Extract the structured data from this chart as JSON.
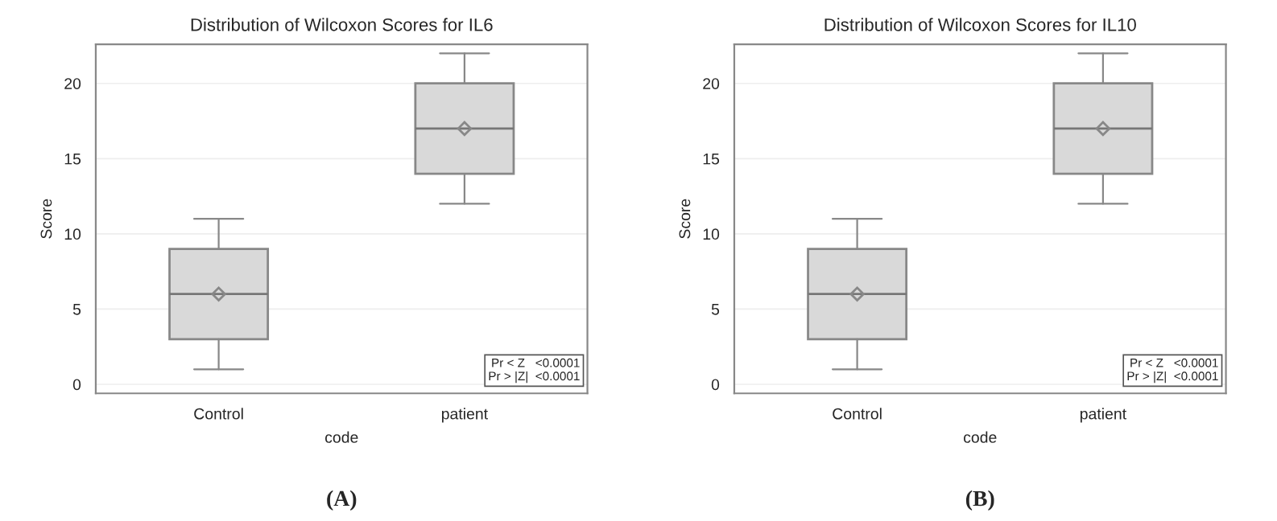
{
  "chart_data": [
    {
      "type": "box",
      "title": "Distribution of Wilcoxon Scores for IL6",
      "xlabel": "code",
      "ylabel": "Score",
      "categories": [
        "Control",
        "patient"
      ],
      "color": "#d9d9d9",
      "boxes": [
        {
          "low": 1,
          "q1": 3,
          "median": 6,
          "q3": 9,
          "high": 11,
          "mean": 6
        },
        {
          "low": 12,
          "q1": 14,
          "median": 17,
          "q3": 20,
          "high": 22,
          "mean": 17
        }
      ],
      "ylim": [
        -0.6,
        22.6
      ],
      "yticks": [
        0,
        5,
        10,
        15,
        20
      ],
      "grid": "y",
      "annotations": [
        "Pr < Z   <0.0001\nPr > |Z|  <0.0001",
        "(A)"
      ]
    },
    {
      "type": "box",
      "title": "Distribution of Wilcoxon Scores for IL10",
      "xlabel": "code",
      "ylabel": "Score",
      "categories": [
        "Control",
        "patient"
      ],
      "color": "#d9d9d9",
      "boxes": [
        {
          "low": 1,
          "q1": 3,
          "median": 6,
          "q3": 9,
          "high": 11,
          "mean": 6
        },
        {
          "low": 12,
          "q1": 14,
          "median": 17,
          "q3": 20,
          "high": 22,
          "mean": 17
        }
      ],
      "ylim": [
        -0.6,
        22.6
      ],
      "yticks": [
        0,
        5,
        10,
        15,
        20
      ],
      "grid": "y",
      "annotations": [
        "Pr < Z   <0.0001\nPr > |Z|  <0.0001",
        "(B)"
      ]
    }
  ]
}
